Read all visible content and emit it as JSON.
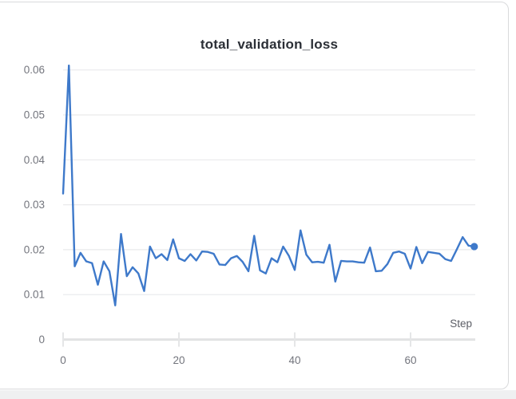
{
  "panel": {
    "title": "total_validation_loss"
  },
  "colors": {
    "line": "#3e79ca",
    "gridline": "#e9eaeb",
    "axis_line": "#e2e3e4",
    "tick_mark": "#e5e6e7",
    "tick_label": "#73757d",
    "axis_title": "#5c5e66",
    "title_text": "#2b2f36",
    "card_border": "#d9dadc",
    "page_strip": "#eff0f1"
  },
  "chart_data": {
    "type": "line",
    "title": "total_validation_loss",
    "xlabel": "Step",
    "ylabel": "",
    "x_is_index": true,
    "x_range": [
      0,
      71
    ],
    "ylim": [
      0,
      0.0633
    ],
    "x_tick_values": [
      0,
      20,
      40,
      60
    ],
    "x_tick_labels": [
      "0",
      "20",
      "40",
      "60"
    ],
    "y_tick_values": [
      0,
      0.01,
      0.02,
      0.03,
      0.04,
      0.05,
      0.06
    ],
    "y_tick_labels": [
      "0",
      "0.01",
      "0.02",
      "0.03",
      "0.04",
      "0.05",
      "0.06"
    ],
    "grid": "horizontal",
    "legend": "none",
    "end_point_marker": true,
    "series": [
      {
        "name": "total_validation_loss",
        "color": "#3e79ca",
        "values": [
          0.0325,
          0.061,
          0.0163,
          0.0193,
          0.0174,
          0.017,
          0.0122,
          0.0174,
          0.0152,
          0.0076,
          0.0235,
          0.0141,
          0.0161,
          0.0147,
          0.0108,
          0.0207,
          0.0181,
          0.019,
          0.0177,
          0.0223,
          0.0181,
          0.0175,
          0.019,
          0.0176,
          0.0196,
          0.0195,
          0.0191,
          0.0167,
          0.0166,
          0.0181,
          0.0186,
          0.0173,
          0.0152,
          0.0231,
          0.0154,
          0.0147,
          0.0181,
          0.0172,
          0.0207,
          0.0186,
          0.0155,
          0.0243,
          0.0189,
          0.0172,
          0.0173,
          0.0171,
          0.0211,
          0.0129,
          0.0175,
          0.0174,
          0.0174,
          0.0172,
          0.0171,
          0.0205,
          0.0152,
          0.0153,
          0.0168,
          0.0193,
          0.0196,
          0.0191,
          0.0158,
          0.0206,
          0.017,
          0.0195,
          0.0193,
          0.0191,
          0.0179,
          0.0175,
          0.0201,
          0.0228,
          0.0209,
          0.0207
        ]
      }
    ]
  }
}
